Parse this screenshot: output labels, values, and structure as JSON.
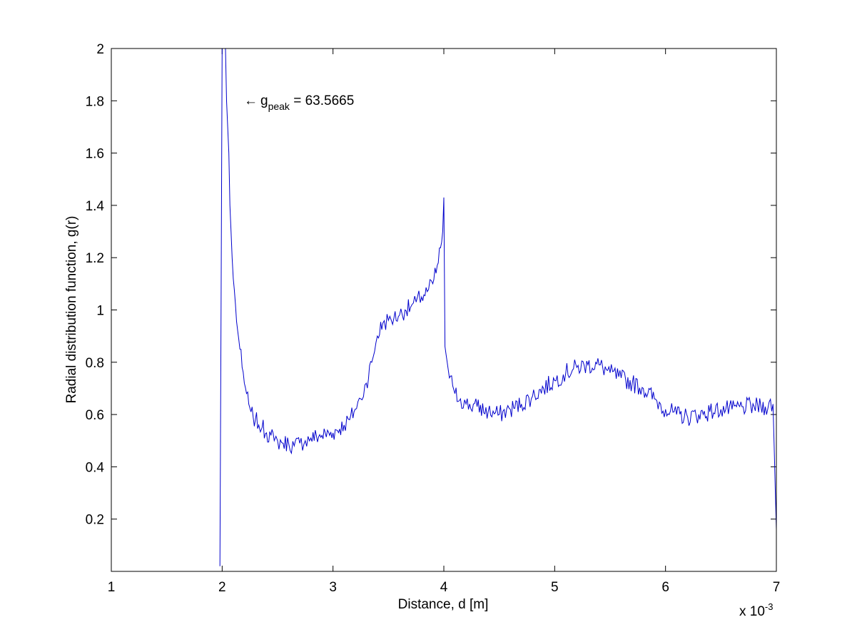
{
  "chart_data": {
    "type": "line",
    "xlabel": "Distance, d [m]",
    "ylabel": "Radial distribution function, g(r)",
    "x_scale_label": {
      "prefix": "x 10",
      "exponent": "-3"
    },
    "xlim": [
      1,
      7
    ],
    "ylim": [
      0,
      2
    ],
    "x_ticks": [
      "1",
      "2",
      "3",
      "4",
      "5",
      "6",
      "7"
    ],
    "y_ticks": [
      "0.2",
      "0.4",
      "0.6",
      "0.8",
      "1",
      "1.2",
      "1.4",
      "1.6",
      "1.8",
      "2"
    ],
    "annotation": {
      "arrow": "←",
      "symbol": "g",
      "subscript": "peak",
      "text": " = 63.5665",
      "x": 2.2,
      "y": 1.8
    },
    "grid": false,
    "box": true,
    "color": "#0000cc",
    "series": [
      {
        "x": [
          1.98,
          1.99,
          2.0,
          2.01,
          2.02,
          2.03,
          2.04,
          2.05,
          2.06,
          2.07,
          2.08,
          2.09,
          2.1,
          2.12,
          2.14,
          2.16,
          2.18,
          2.2,
          2.22,
          2.24,
          2.26,
          2.28,
          2.3,
          2.33,
          2.36,
          2.4,
          2.44,
          2.47,
          2.5,
          2.55,
          2.6,
          2.65,
          2.7,
          2.75,
          2.8,
          2.9,
          3.0,
          3.1,
          3.15,
          3.2,
          3.25,
          3.3,
          3.35,
          3.4,
          3.45,
          3.5,
          3.55,
          3.6,
          3.65,
          3.7,
          3.75,
          3.8,
          3.85,
          3.9,
          3.95,
          3.99,
          4.0,
          4.01,
          4.03,
          4.05,
          4.08,
          4.1,
          4.15,
          4.2,
          4.3,
          4.4,
          4.5,
          4.6,
          4.7,
          4.8,
          4.9,
          5.0,
          5.1,
          5.2,
          5.3,
          5.4,
          5.5,
          5.6,
          5.7,
          5.8,
          5.9,
          6.0,
          6.1,
          6.2,
          6.3,
          6.4,
          6.5,
          6.6,
          6.7,
          6.8,
          6.9,
          6.97,
          7.0
        ],
        "y": [
          0.02,
          1.0,
          2.05,
          2.05,
          2.05,
          2.0,
          1.8,
          1.7,
          1.6,
          1.4,
          1.3,
          1.2,
          1.12,
          1.02,
          0.92,
          0.85,
          0.78,
          0.72,
          0.68,
          0.64,
          0.61,
          0.59,
          0.58,
          0.56,
          0.55,
          0.53,
          0.52,
          0.5,
          0.5,
          0.49,
          0.49,
          0.48,
          0.49,
          0.5,
          0.51,
          0.52,
          0.53,
          0.56,
          0.58,
          0.62,
          0.66,
          0.72,
          0.8,
          0.9,
          0.95,
          0.96,
          0.97,
          0.98,
          1.0,
          1.01,
          1.03,
          1.05,
          1.07,
          1.1,
          1.18,
          1.3,
          1.43,
          0.86,
          0.8,
          0.74,
          0.71,
          0.68,
          0.66,
          0.64,
          0.63,
          0.61,
          0.6,
          0.62,
          0.64,
          0.67,
          0.7,
          0.73,
          0.76,
          0.78,
          0.79,
          0.79,
          0.76,
          0.74,
          0.72,
          0.7,
          0.66,
          0.62,
          0.6,
          0.59,
          0.6,
          0.61,
          0.62,
          0.62,
          0.63,
          0.63,
          0.63,
          0.64,
          0.16
        ]
      }
    ]
  }
}
